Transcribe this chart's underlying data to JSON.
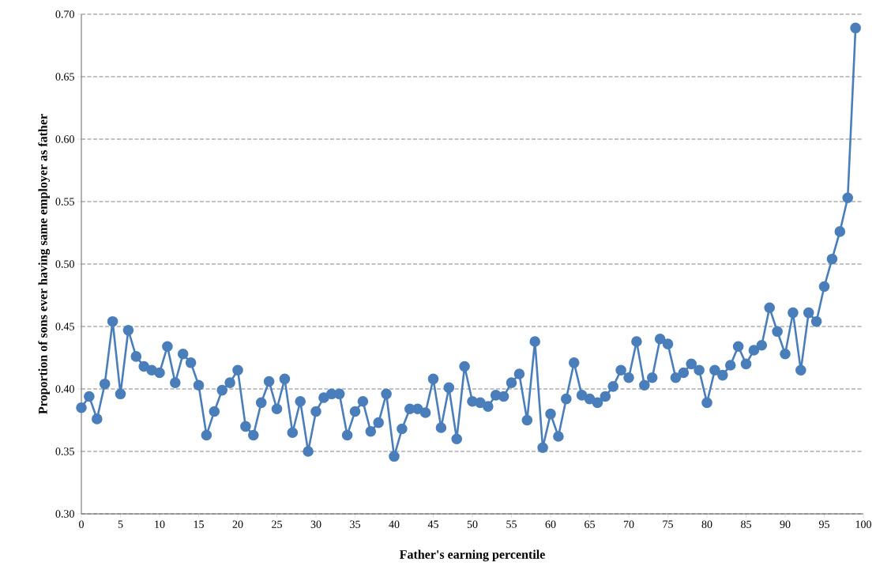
{
  "chart_data": {
    "type": "line",
    "xlabel": "Father's earning percentile",
    "ylabel": "Proportion of sons ever having same employer as father",
    "x": [
      0,
      1,
      2,
      3,
      4,
      5,
      6,
      7,
      8,
      9,
      10,
      11,
      12,
      13,
      14,
      15,
      16,
      17,
      18,
      19,
      20,
      21,
      22,
      23,
      24,
      25,
      26,
      27,
      28,
      29,
      30,
      31,
      32,
      33,
      34,
      35,
      36,
      37,
      38,
      39,
      40,
      41,
      42,
      43,
      44,
      45,
      46,
      47,
      48,
      49,
      50,
      51,
      52,
      53,
      54,
      55,
      56,
      57,
      58,
      59,
      60,
      61,
      62,
      63,
      64,
      65,
      66,
      67,
      68,
      69,
      70,
      71,
      72,
      73,
      74,
      75,
      76,
      77,
      78,
      79,
      80,
      81,
      82,
      83,
      84,
      85,
      86,
      87,
      88,
      89,
      90,
      91,
      92,
      93,
      94,
      95,
      96,
      97,
      98,
      99
    ],
    "series": [
      {
        "color": "#4a7ebb",
        "values": [
          0.385,
          0.394,
          0.376,
          0.404,
          0.454,
          0.396,
          0.447,
          0.426,
          0.418,
          0.415,
          0.413,
          0.434,
          0.405,
          0.428,
          0.421,
          0.403,
          0.363,
          0.382,
          0.399,
          0.405,
          0.415,
          0.37,
          0.363,
          0.389,
          0.406,
          0.384,
          0.408,
          0.365,
          0.39,
          0.35,
          0.382,
          0.393,
          0.396,
          0.396,
          0.363,
          0.382,
          0.39,
          0.366,
          0.373,
          0.396,
          0.346,
          0.368,
          0.384,
          0.384,
          0.381,
          0.408,
          0.369,
          0.401,
          0.36,
          0.418,
          0.39,
          0.389,
          0.386,
          0.395,
          0.394,
          0.405,
          0.412,
          0.375,
          0.438,
          0.353,
          0.38,
          0.362,
          0.392,
          0.421,
          0.395,
          0.392,
          0.389,
          0.394,
          0.402,
          0.415,
          0.409,
          0.438,
          0.403,
          0.409,
          0.44,
          0.436,
          0.409,
          0.413,
          0.42,
          0.415,
          0.389,
          0.415,
          0.411,
          0.419,
          0.434,
          0.42,
          0.431,
          0.435,
          0.465,
          0.446,
          0.428,
          0.461,
          0.415,
          0.461,
          0.454,
          0.482,
          0.504,
          0.526,
          0.553,
          0.689
        ]
      }
    ],
    "xlim": [
      0,
      100
    ],
    "xticks": [
      0,
      5,
      10,
      15,
      20,
      25,
      30,
      35,
      40,
      45,
      50,
      55,
      60,
      65,
      70,
      75,
      80,
      85,
      90,
      95,
      100
    ],
    "ylim": [
      0.3,
      0.7
    ],
    "yticks": [
      {
        "value": 0.3,
        "label": "0.30"
      },
      {
        "value": 0.35,
        "label": "0.35"
      },
      {
        "value": 0.4,
        "label": "0.40"
      },
      {
        "value": 0.45,
        "label": "0.45"
      },
      {
        "value": 0.5,
        "label": "0.50"
      },
      {
        "value": 0.55,
        "label": "0.55"
      },
      {
        "value": 0.6,
        "label": "0.60"
      },
      {
        "value": 0.65,
        "label": "0.65"
      },
      {
        "value": 0.7,
        "label": "0.70"
      }
    ],
    "grid": "y",
    "marker": "circle",
    "line_style": "solid"
  }
}
